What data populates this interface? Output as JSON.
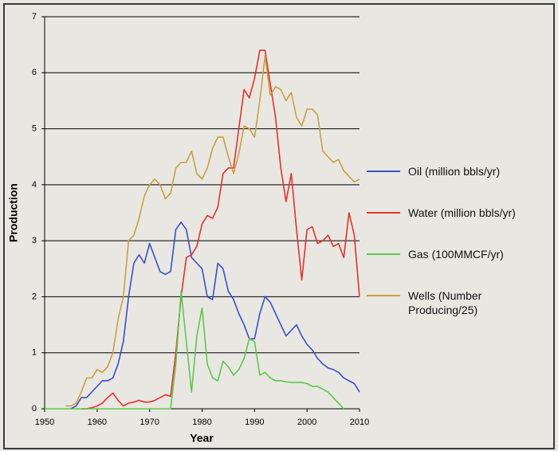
{
  "chart_data": {
    "type": "line",
    "x_label": "Year",
    "y_label": "Production",
    "x": [
      1950,
      1951,
      1952,
      1953,
      1954,
      1955,
      1956,
      1957,
      1958,
      1959,
      1960,
      1961,
      1962,
      1963,
      1964,
      1965,
      1966,
      1967,
      1968,
      1969,
      1970,
      1971,
      1972,
      1973,
      1974,
      1975,
      1976,
      1977,
      1978,
      1979,
      1980,
      1981,
      1982,
      1983,
      1984,
      1985,
      1986,
      1987,
      1988,
      1989,
      1990,
      1991,
      1992,
      1993,
      1994,
      1995,
      1996,
      1997,
      1998,
      1999,
      2000,
      2001,
      2002,
      2003,
      2004,
      2005,
      2006,
      2007,
      2008,
      2009,
      2010
    ],
    "series": [
      {
        "name": "Oil (million bbls/yr)",
        "color": "#3b4fc4",
        "values": [
          null,
          null,
          null,
          null,
          null,
          0,
          0.05,
          0.2,
          0.2,
          0.3,
          0.4,
          0.5,
          0.5,
          0.55,
          0.8,
          1.2,
          2.0,
          2.6,
          2.75,
          2.6,
          2.95,
          2.7,
          2.45,
          2.4,
          2.45,
          3.2,
          3.33,
          3.2,
          2.7,
          2.6,
          2.5,
          2.0,
          1.95,
          2.6,
          2.5,
          2.1,
          1.95,
          1.7,
          1.5,
          1.25,
          1.25,
          1.7,
          2.0,
          1.9,
          1.7,
          1.5,
          1.3,
          1.4,
          1.5,
          1.3,
          1.15,
          1.05,
          0.9,
          0.8,
          0.73,
          0.7,
          0.65,
          0.55,
          0.5,
          0.45,
          0.3
        ]
      },
      {
        "name": "Water (million bbls/yr)",
        "color": "#e8302a",
        "values": [
          null,
          null,
          null,
          null,
          null,
          null,
          null,
          0,
          0,
          0.02,
          0.05,
          0.1,
          0.2,
          0.28,
          0.15,
          0.05,
          0.1,
          0.12,
          0.15,
          0.12,
          0.12,
          0.15,
          0.2,
          0.25,
          0.22,
          1.0,
          2.0,
          2.7,
          2.75,
          2.9,
          3.3,
          3.45,
          3.4,
          3.6,
          4.2,
          4.3,
          4.3,
          5.0,
          5.7,
          5.55,
          5.9,
          6.4,
          6.4,
          5.8,
          5.2,
          4.3,
          3.7,
          4.2,
          3.2,
          2.3,
          3.2,
          3.25,
          2.95,
          3.0,
          3.1,
          2.9,
          2.95,
          2.7,
          3.5,
          3.1,
          2.0
        ]
      },
      {
        "name": "Gas (100MMCF/yr)",
        "color": "#5cc84a",
        "values": [
          0,
          0,
          0,
          0,
          0,
          0,
          0,
          0,
          0,
          0,
          0,
          0,
          0,
          0,
          0,
          0,
          0,
          0,
          0,
          0,
          0,
          0,
          0,
          0,
          0,
          0.8,
          2.1,
          1.2,
          0.3,
          1.3,
          1.8,
          0.8,
          0.55,
          0.5,
          0.85,
          0.75,
          0.6,
          0.7,
          0.9,
          1.25,
          1.2,
          0.6,
          0.65,
          0.55,
          0.5,
          0.5,
          0.48,
          0.47,
          0.47,
          0.47,
          0.45,
          0.4,
          0.4,
          0.35,
          0.3,
          0.2,
          0.1,
          0,
          null,
          null,
          null
        ]
      },
      {
        "name": "Wells (Number Producing/25)",
        "color": "#c9a040",
        "values": [
          null,
          null,
          null,
          null,
          0.05,
          0.05,
          0.1,
          0.3,
          0.55,
          0.55,
          0.7,
          0.65,
          0.75,
          1.0,
          1.6,
          2.0,
          3.0,
          3.1,
          3.4,
          3.8,
          4.0,
          4.1,
          4.0,
          3.75,
          3.85,
          4.3,
          4.4,
          4.4,
          4.6,
          4.2,
          4.1,
          4.3,
          4.65,
          4.85,
          4.85,
          4.5,
          4.2,
          4.55,
          5.05,
          5.0,
          4.85,
          5.5,
          6.3,
          5.6,
          5.75,
          5.7,
          5.5,
          5.65,
          5.2,
          5.05,
          5.35,
          5.35,
          5.25,
          4.6,
          4.5,
          4.4,
          4.45,
          4.25,
          4.15,
          4.05,
          4.1
        ]
      }
    ],
    "xlim": [
      1950,
      2010
    ],
    "xticks": [
      1950,
      1960,
      1970,
      1980,
      1990,
      2000,
      2010
    ],
    "ylim": [
      0,
      7
    ],
    "yticks": [
      0,
      1,
      2,
      3,
      4,
      5,
      6,
      7
    ],
    "grid": true
  }
}
